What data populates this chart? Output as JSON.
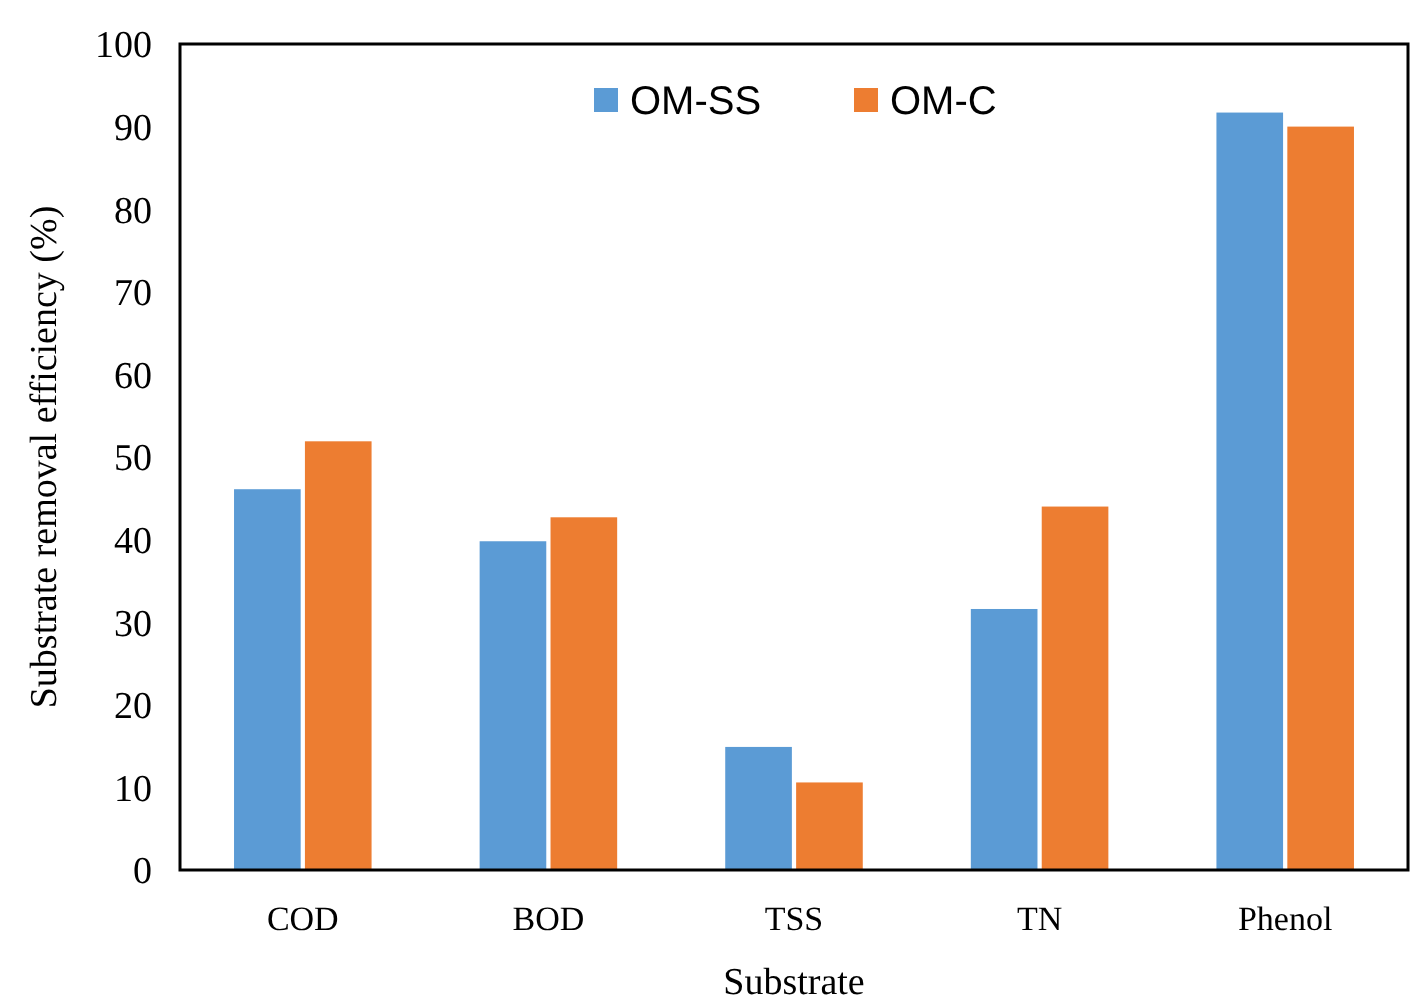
{
  "chart_data": {
    "type": "bar",
    "xlabel": "Substrate",
    "ylabel": "Substrate removal efficiency (%)",
    "categories": [
      "COD",
      "BOD",
      "TSS",
      "TN",
      "Phenol"
    ],
    "series": [
      {
        "name": "OM-SS",
        "color": "#5b9bd5",
        "values": [
          46.1,
          39.8,
          14.9,
          31.6,
          91.7
        ]
      },
      {
        "name": "OM-C",
        "color": "#ed7d31",
        "values": [
          51.9,
          42.7,
          10.6,
          44.0,
          90.0
        ]
      }
    ],
    "ylim": [
      0,
      100
    ],
    "yticks": [
      0,
      10,
      20,
      30,
      40,
      50,
      60,
      70,
      80,
      90,
      100
    ],
    "grid": false,
    "legend": "top"
  }
}
